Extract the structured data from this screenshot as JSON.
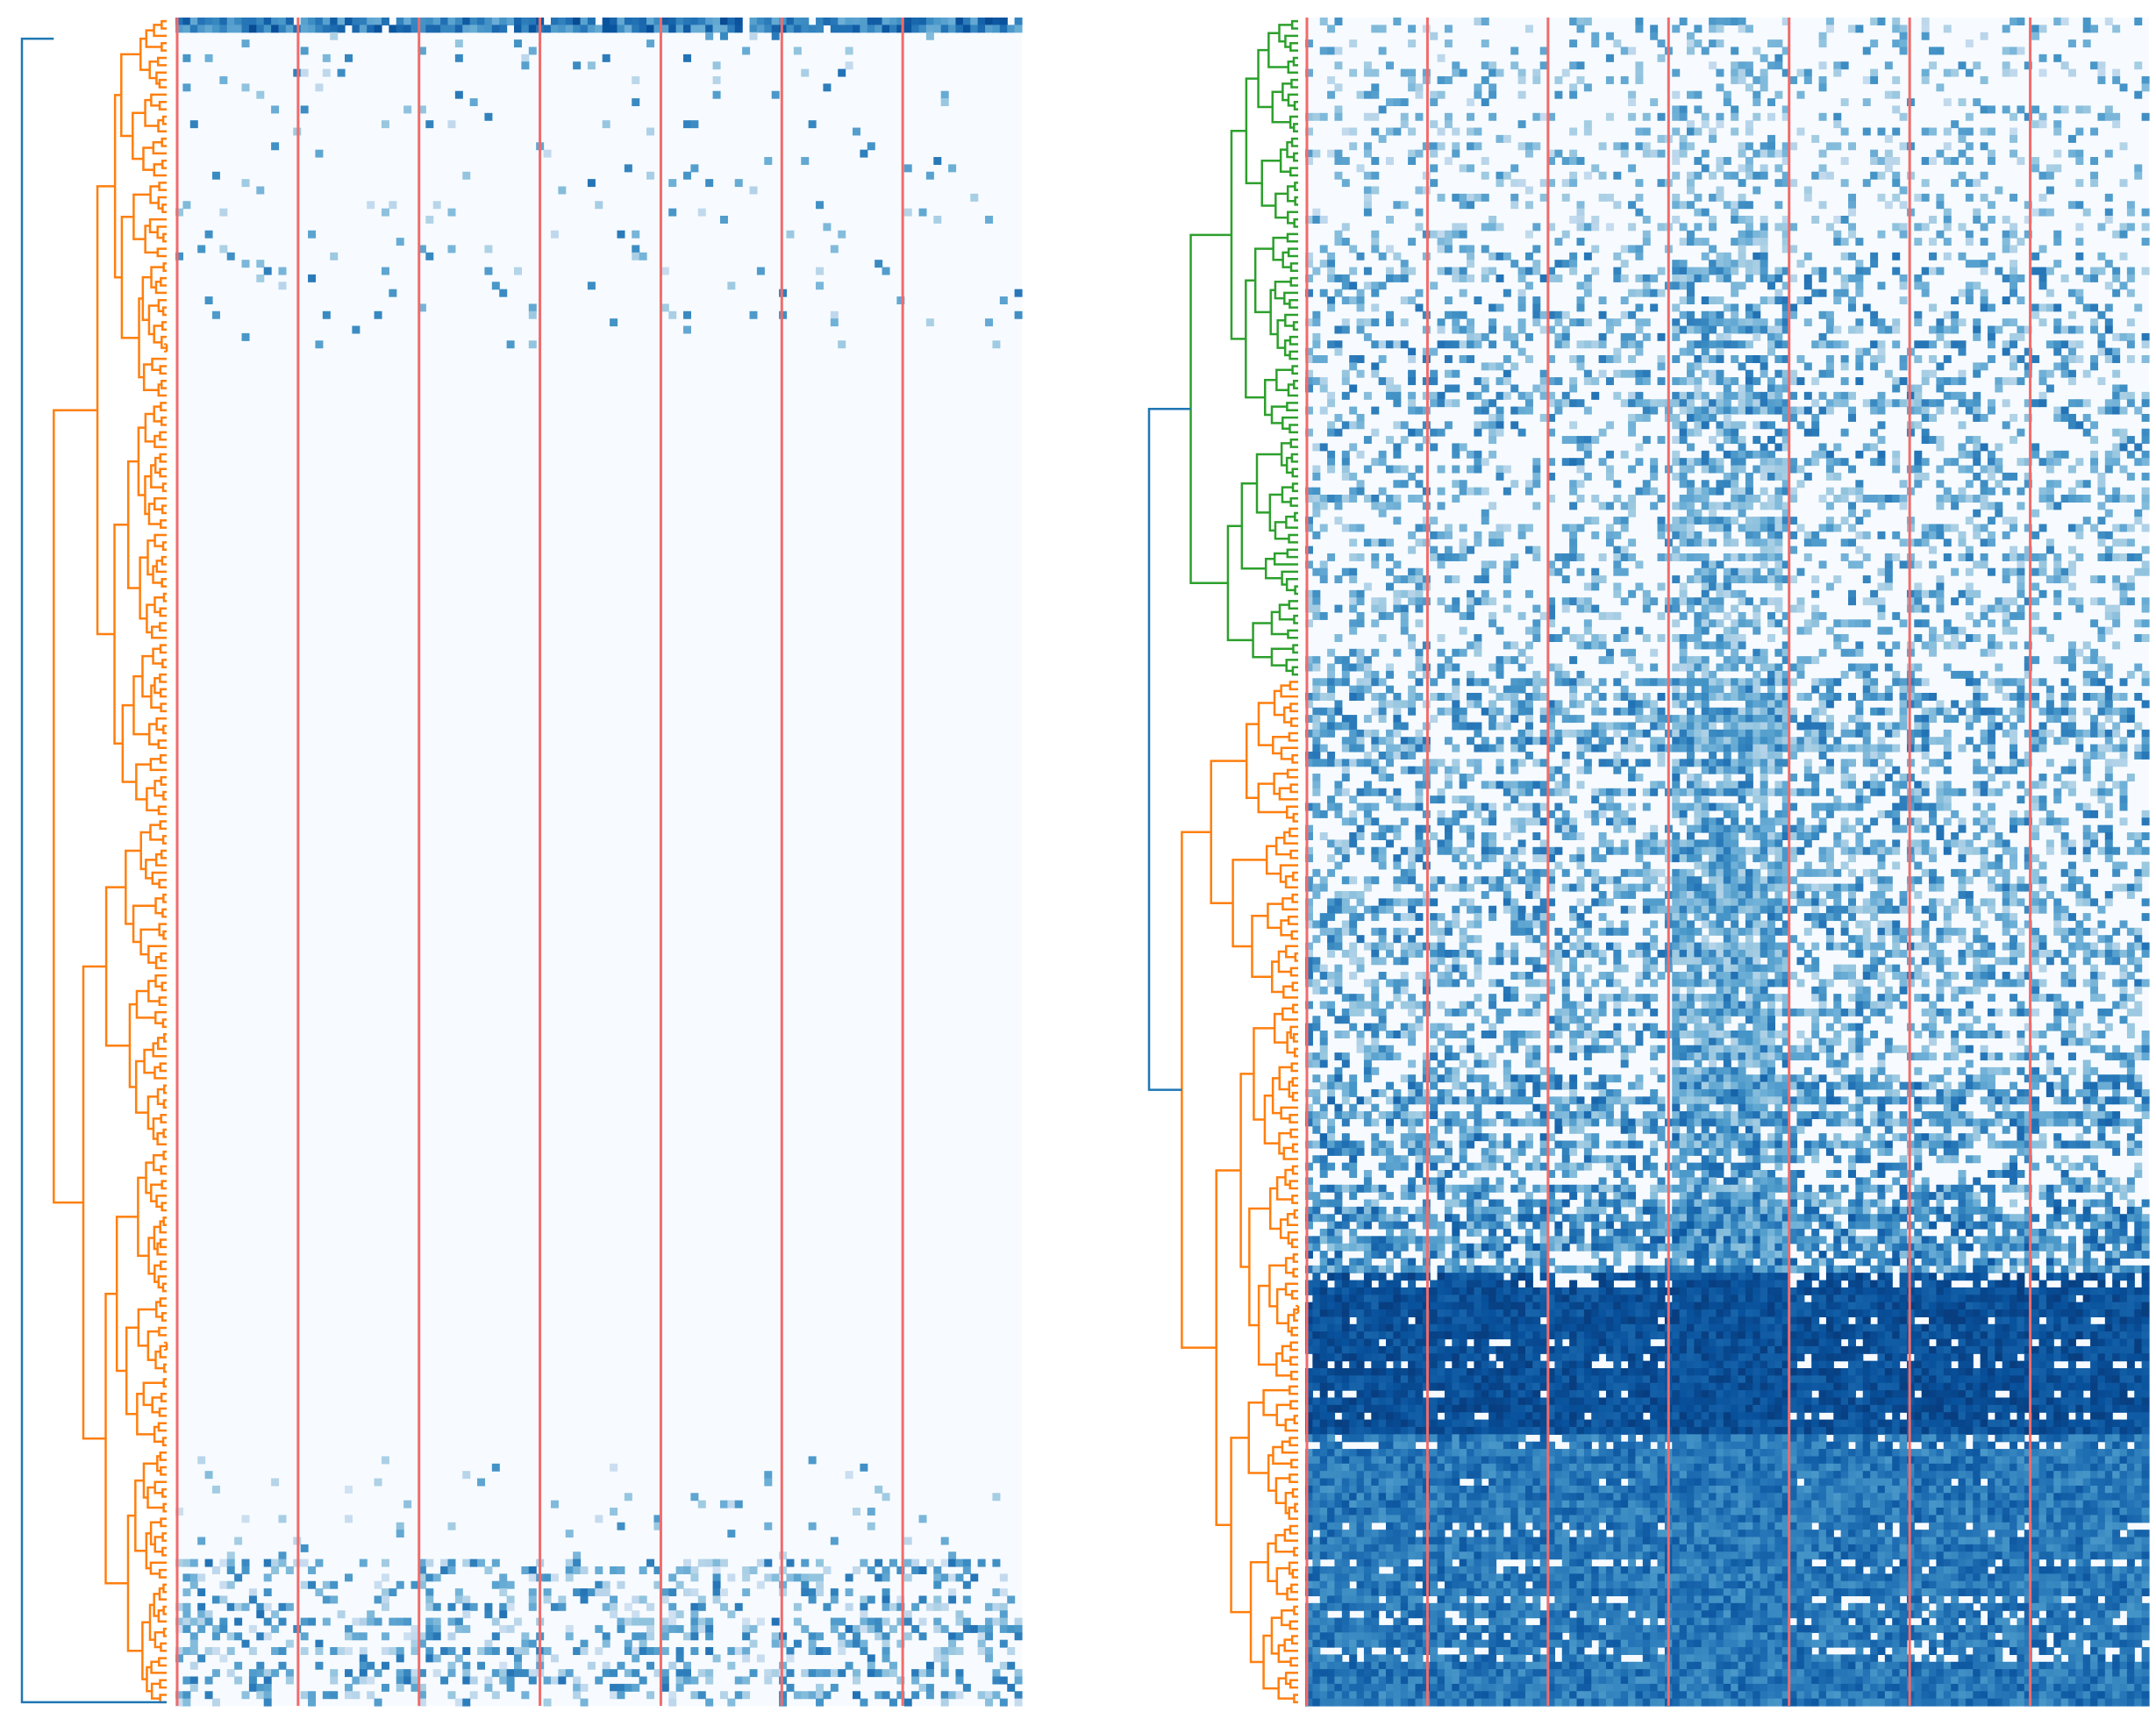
{
  "chart_data": [
    {
      "type": "heatmap",
      "panel": "left",
      "dendrogram_orientation": "left",
      "colormap": "Blues",
      "n_rows": 230,
      "n_cols": 115,
      "column_groups": 7,
      "group_divider_color": "#f16b6b",
      "link_colors": {
        "root": "#1f77b4",
        "cluster_1": "#ff7f0e"
      },
      "clusters": [
        {
          "name": "cluster_1",
          "rows": [
            0,
            229
          ],
          "color": "#ff7f0e"
        }
      ],
      "blocks": [
        {
          "rows": [
            0,
            1
          ],
          "density": 0.95,
          "level": [
            0.5,
            0.9
          ]
        },
        {
          "rows": [
            2,
            44
          ],
          "density": 0.035,
          "level": [
            0.25,
            0.75
          ]
        },
        {
          "rows": [
            45,
            195
          ],
          "density": 0.0,
          "level": [
            0.2,
            0.4
          ]
        },
        {
          "rows": [
            196,
            209
          ],
          "density": 0.05,
          "level": [
            0.2,
            0.65
          ]
        },
        {
          "rows": [
            210,
            229
          ],
          "density": 0.3,
          "level": [
            0.2,
            0.75
          ]
        }
      ],
      "column_emphasis": [
        {
          "cols": [
            0,
            14
          ],
          "factor": 1.3
        },
        {
          "cols": [
            30,
            44
          ],
          "factor": 1.2
        },
        {
          "cols": [
            60,
            74
          ],
          "factor": 1.3
        },
        {
          "cols": [
            90,
            104
          ],
          "factor": 1.4
        }
      ],
      "grid": false,
      "axes_visible": false
    },
    {
      "type": "heatmap",
      "panel": "right",
      "dendrogram_orientation": "left",
      "colormap": "Blues",
      "n_rows": 230,
      "n_cols": 115,
      "column_groups": 7,
      "group_divider_color": "#f16b6b",
      "link_colors": {
        "root": "#1f77b4",
        "cluster_1": "#2ca02c",
        "cluster_2": "#ff7f0e"
      },
      "clusters": [
        {
          "name": "cluster_1",
          "rows": [
            0,
            89
          ],
          "color": "#2ca02c"
        },
        {
          "name": "cluster_2",
          "rows": [
            90,
            229
          ],
          "color": "#ff7f0e"
        }
      ],
      "blocks": [
        {
          "rows": [
            0,
            31
          ],
          "density": 0.2,
          "level": [
            0.25,
            0.65
          ]
        },
        {
          "rows": [
            32,
            60
          ],
          "density": 0.35,
          "level": [
            0.3,
            0.75
          ]
        },
        {
          "rows": [
            61,
            89
          ],
          "density": 0.3,
          "level": [
            0.3,
            0.7
          ]
        },
        {
          "rows": [
            90,
            143
          ],
          "density": 0.45,
          "level": [
            0.3,
            0.75
          ]
        },
        {
          "rows": [
            144,
            161
          ],
          "density": 0.55,
          "level": [
            0.35,
            0.8
          ]
        },
        {
          "rows": [
            162,
            170
          ],
          "density": 0.6,
          "level": [
            0.4,
            0.85
          ]
        },
        {
          "rows": [
            171,
            192
          ],
          "density": 1.0,
          "level": [
            0.8,
            0.95
          ]
        },
        {
          "rows": [
            193,
            229
          ],
          "density": 1.0,
          "level": [
            0.6,
            0.85
          ]
        }
      ],
      "column_emphasis": [
        {
          "cols": [
            50,
            65
          ],
          "factor": 1.8
        }
      ],
      "grid": false,
      "axes_visible": false
    }
  ]
}
